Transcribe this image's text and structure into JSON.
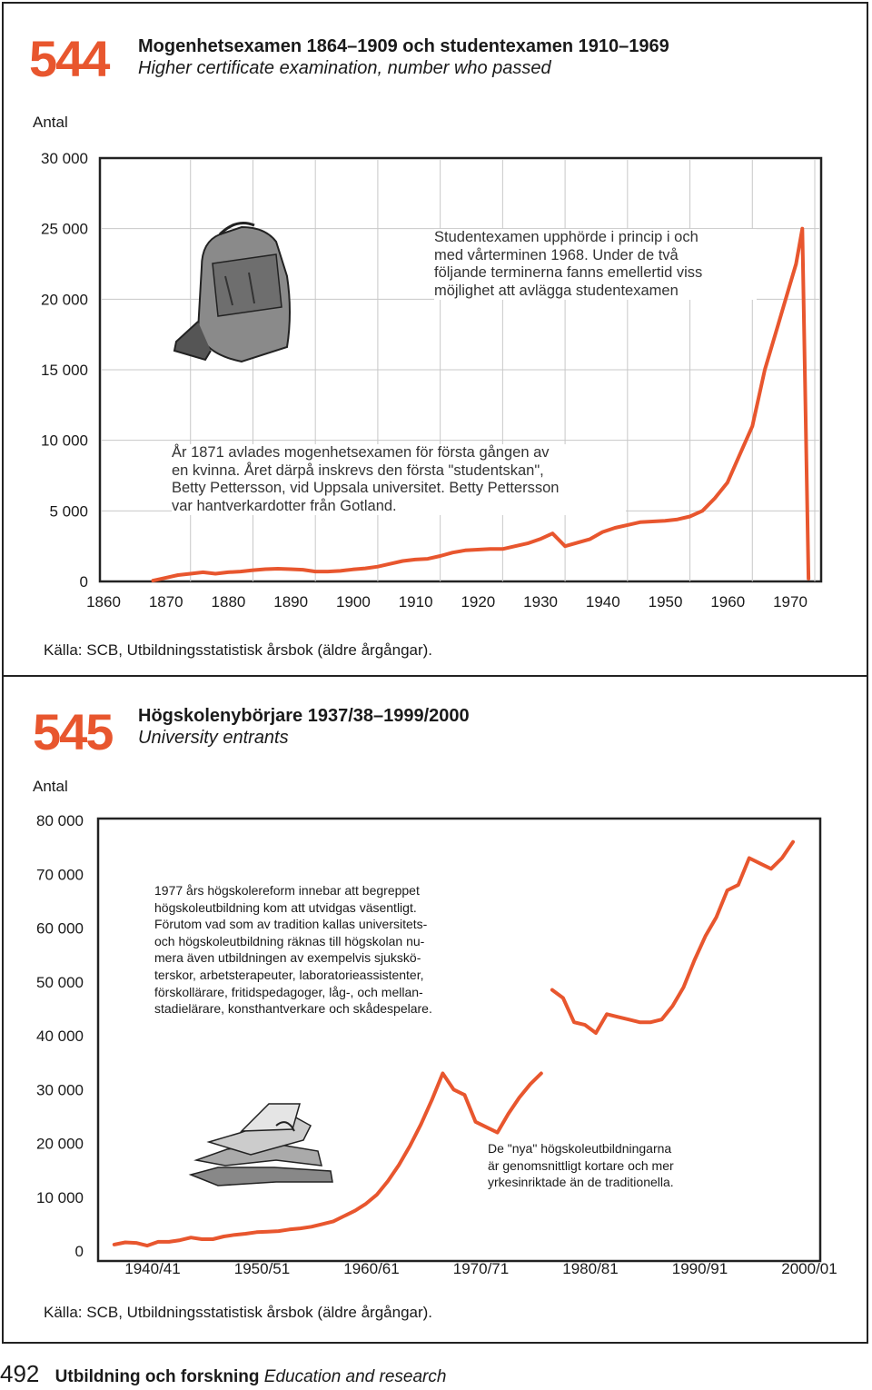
{
  "chart_data": [
    {
      "type": "line",
      "number": "544",
      "title": "Mogenhetsexamen 1864–1909 och studentexamen 1910–1969",
      "subtitle": "Higher certificate examination, number who passed",
      "ylabel": "Antal",
      "ylim": [
        0,
        30000
      ],
      "xlim": [
        1860,
        1970
      ],
      "y_ticks": [
        "30 000",
        "25 000",
        "20 000",
        "15 000",
        "10 000",
        "5 000",
        "0"
      ],
      "y_tick_values": [
        30000,
        25000,
        20000,
        15000,
        10000,
        5000,
        0
      ],
      "x_ticks": [
        "1860",
        "1870",
        "1880",
        "1890",
        "1900",
        "1910",
        "1920",
        "1930",
        "1940",
        "1950",
        "1960",
        "1970"
      ],
      "x_tick_values": [
        1860,
        1870,
        1880,
        1890,
        1900,
        1910,
        1920,
        1930,
        1940,
        1950,
        1960,
        1970
      ],
      "grid": true,
      "line_color": "#e8562e",
      "series": [
        {
          "x": [
            1864,
            1866,
            1868,
            1870,
            1872,
            1874,
            1876,
            1878,
            1880,
            1882,
            1884,
            1886,
            1888,
            1890,
            1892,
            1894,
            1896,
            1898,
            1900,
            1902,
            1904,
            1906,
            1908,
            1910,
            1912,
            1914,
            1916,
            1918,
            1920,
            1922,
            1924,
            1926,
            1928,
            1930,
            1932,
            1934,
            1936,
            1938,
            1940,
            1942,
            1944,
            1946,
            1948,
            1950,
            1952,
            1954,
            1956,
            1958,
            1960,
            1962,
            1964,
            1966,
            1967,
            1968,
            1969
          ],
          "values": [
            60,
            250,
            450,
            550,
            650,
            550,
            650,
            700,
            800,
            870,
            900,
            870,
            830,
            700,
            700,
            750,
            850,
            930,
            1050,
            1250,
            1450,
            1550,
            1600,
            1800,
            2050,
            2200,
            2250,
            2300,
            2300,
            2500,
            2700,
            3000,
            3400,
            2500,
            2750,
            3000,
            3500,
            3800,
            4000,
            4200,
            4250,
            4300,
            4400,
            4600,
            5000,
            5900,
            7000,
            9000,
            11000,
            15000,
            18000,
            21000,
            22500,
            25000,
            200
          ]
        }
      ],
      "annotations": [
        "Studentexamen upphörde i princip i och med vårterminen 1968. Under de två följande terminerna fanns emellertid viss möjlighet att avlägga studentexamen",
        "År 1871 avlades mogenhetsexamen för första gången av en kvinna. Året därpå inskrevs den första \"studentskan\", Betty Pettersson, vid Uppsala universitet. Betty Pettersson var hantverkardotter från Gotland."
      ],
      "source": "Källa: SCB, Utbildningsstatistisk årsbok (äldre årgångar)."
    },
    {
      "type": "line",
      "number": "545",
      "title": "Högskolenybörjare 1937/38–1999/2000",
      "subtitle": "University entrants",
      "ylabel": "Antal",
      "ylim": [
        0,
        80000
      ],
      "y_ticks": [
        "80 000",
        "70 000",
        "60 000",
        "50 000",
        "40 000",
        "30 000",
        "20 000",
        "10 000",
        "0"
      ],
      "y_tick_values": [
        80000,
        70000,
        60000,
        50000,
        40000,
        30000,
        20000,
        10000,
        0
      ],
      "x_ticks": [
        "1940/41",
        "1950/51",
        "1960/61",
        "1970/71",
        "1980/81",
        "1990/91",
        "2000/01"
      ],
      "x_tick_values": [
        1940,
        1950,
        1960,
        1970,
        1980,
        1990,
        2000
      ],
      "grid": false,
      "line_color": "#e8562e",
      "series": [
        {
          "x": [
            1937,
            1938,
            1939,
            1940,
            1941,
            1942,
            1943,
            1944,
            1945,
            1946,
            1947,
            1948,
            1949,
            1950,
            1951,
            1952,
            1953,
            1954,
            1955,
            1956,
            1957,
            1958,
            1959,
            1960,
            1961,
            1962,
            1963,
            1964,
            1965,
            1966,
            1967,
            1968,
            1969,
            1970,
            1971,
            1972,
            1973,
            1974,
            1975,
            1976
          ],
          "values": [
            1200,
            1600,
            1500,
            1000,
            1700,
            1700,
            2000,
            2500,
            2200,
            2200,
            2700,
            3000,
            3200,
            3500,
            3600,
            3700,
            4000,
            4200,
            4500,
            5000,
            5500,
            6500,
            7500,
            8800,
            10500,
            13000,
            16000,
            19500,
            23500,
            28000,
            33000,
            30000,
            29000,
            24000,
            23000,
            22000,
            25500,
            28500,
            31000,
            33000
          ]
        },
        {
          "x": [
            1977,
            1978,
            1979,
            1980,
            1981,
            1982,
            1983,
            1984,
            1985,
            1986,
            1987,
            1988,
            1989,
            1990,
            1991,
            1992,
            1993,
            1994,
            1995,
            1996,
            1997,
            1998,
            1999
          ],
          "values": [
            48500,
            47000,
            42500,
            42000,
            40500,
            44000,
            43500,
            43000,
            42500,
            42500,
            43000,
            45500,
            49000,
            54000,
            58500,
            62000,
            67000,
            68000,
            73000,
            72000,
            71000,
            73000,
            76000
          ]
        }
      ],
      "annotations": [
        "1977 års högskolereform innebar att begreppet högskoleutbildning kom att utvidgas väsentligt. Förutom vad som av tradition kallas universitets- och högskoleutbildning räknas till högskolan numera även utbildningen av exempelvis sjuksköterskor, arbetsterapeuter, laboratorieassistenter, förskollärare, fritidspedagoger, låg-, och mellanstadielärare, konsthantverkare och skådespelare.",
        "De \"nya\" högskoleutbildningarna är genomsnittligt kortare och mer yrkesinriktade än de traditionella."
      ],
      "source": "Källa: SCB, Utbildningsstatistisk årsbok (äldre årgångar)."
    }
  ],
  "note1_lines": [
    "Studentexamen upphörde i princip i och",
    "med vårterminen 1968. Under de två",
    "följande terminerna fanns emellertid viss",
    "möjlighet att avlägga studentexamen"
  ],
  "note2_lines": [
    "År 1871 avlades mogenhetsexamen för första gången av",
    "en kvinna. Året därpå inskrevs den första \"studentskan\",",
    "Betty Pettersson, vid Uppsala universitet. Betty Pettersson",
    "var hantverkardotter från Gotland."
  ],
  "note3_lines": [
    "1977 års högskolereform innebar att begreppet",
    "högskoleutbildning kom att utvidgas väsentligt.",
    "Förutom vad som av tradition kallas universitets-",
    "och högskoleutbildning räknas till högskolan nu-",
    "mera även utbildningen av exempelvis sjukskö-",
    "terskor, arbetsterapeuter, laboratorieassistenter,",
    "förskollärare, fritidspedagoger, låg-, och mellan-",
    "stadielärare, konsthantverkare och skådespelare."
  ],
  "note4_lines": [
    "De \"nya\" högskoleutbildningarna",
    "är genomsnittligt kortare och mer",
    "yrkesinriktade än de traditionella."
  ],
  "footer": {
    "page": "492",
    "section_sv": "Utbildning och forskning",
    "section_en": "Education and research"
  }
}
